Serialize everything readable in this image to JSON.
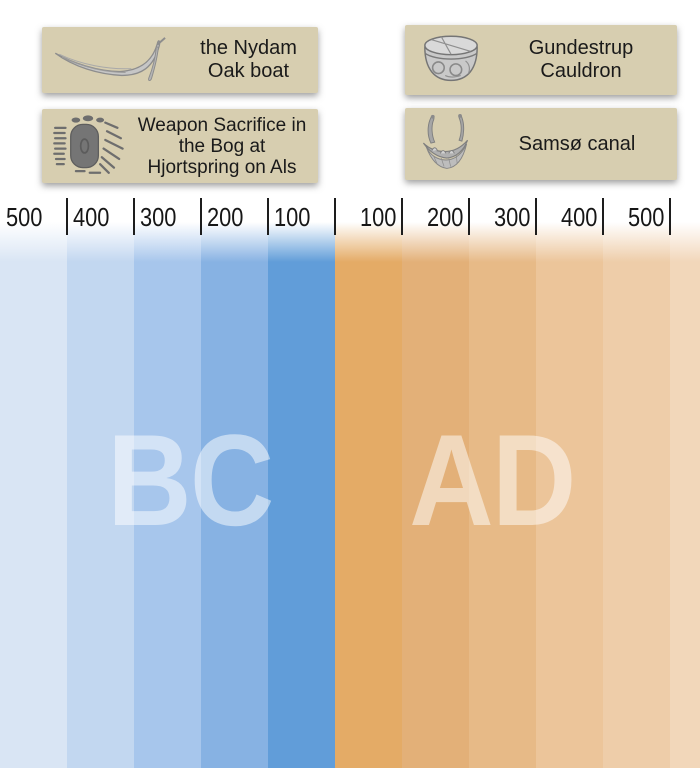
{
  "artifact_boxes": [
    {
      "name": "nydam-oak-boat",
      "icon": "boat-sketch-icon",
      "lines": [
        "the Nydam",
        "Oak boat"
      ]
    },
    {
      "name": "hjortspring-weapon-sacrifice",
      "icon": "bog-weapons-sketch-icon",
      "lines": [
        "Weapon Sacrifice in",
        "the Bog at",
        "Hjortspring on Als"
      ]
    },
    {
      "name": "gundestrup-cauldron",
      "icon": "cauldron-sketch-icon",
      "lines": [
        "Gundestrup",
        "Cauldron"
      ]
    },
    {
      "name": "samso-canal",
      "icon": "viking-ship-sketch-icon",
      "lines": [
        "Samsø canal"
      ]
    }
  ],
  "timeline": {
    "era_left": "BC",
    "era_right": "AD",
    "left_years": [
      "500",
      "400",
      "300",
      "200",
      "100"
    ],
    "right_years": [
      "100",
      "200",
      "300",
      "400",
      "500"
    ]
  },
  "styles": {
    "box_bg": "#d7ceb0",
    "box_text_color": "#1a1a1a",
    "year_label_color": "#161616",
    "tick_color": "#1d1d1d",
    "era_text_color": "rgba(255,255,255,0.5)",
    "bc_bands": [
      "#d9e5f4",
      "#c2d7f0",
      "#a7c6ec",
      "#87b2e3",
      "#619dd9"
    ],
    "ad_bands": [
      "#e4ab66",
      "#e3b078",
      "#e7ba87",
      "#ecc59a",
      "#eecda9",
      "#f2d7ba"
    ]
  }
}
